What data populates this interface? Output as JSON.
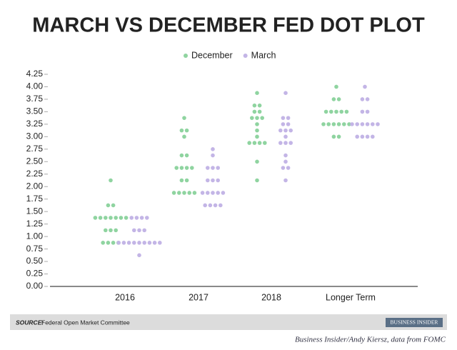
{
  "chart_data": {
    "type": "dot",
    "title": "MARCH VS DECEMBER FED DOT PLOT",
    "categories": [
      "2016",
      "2017",
      "2018",
      "Longer Term"
    ],
    "series": [
      {
        "name": "December",
        "color": "#8fd4a0",
        "values": [
          [
            2.125,
            1.625,
            1.625,
            1.375,
            1.375,
            1.375,
            1.375,
            1.375,
            1.375,
            1.375,
            1.125,
            1.125,
            1.125,
            0.875,
            0.875,
            0.875,
            0.875
          ],
          [
            3.375,
            3.125,
            3.125,
            3.0,
            2.625,
            2.625,
            2.375,
            2.375,
            2.375,
            2.375,
            2.125,
            2.125,
            1.875,
            1.875,
            1.875,
            1.875,
            1.875
          ],
          [
            3.875,
            3.625,
            3.625,
            3.5,
            3.5,
            3.375,
            3.375,
            3.375,
            3.25,
            3.125,
            3.0,
            2.875,
            2.875,
            2.875,
            2.875,
            2.5,
            2.125
          ],
          [
            4.0,
            3.75,
            3.75,
            3.5,
            3.5,
            3.5,
            3.5,
            3.5,
            3.25,
            3.25,
            3.25,
            3.25,
            3.25,
            3.25,
            3.0,
            3.0
          ]
        ]
      },
      {
        "name": "March",
        "color": "#c3b5e6",
        "values": [
          [
            1.375,
            1.375,
            1.375,
            1.375,
            1.125,
            1.125,
            1.125,
            0.875,
            0.875,
            0.875,
            0.875,
            0.875,
            0.875,
            0.875,
            0.875,
            0.875,
            0.625
          ],
          [
            2.75,
            2.625,
            2.375,
            2.375,
            2.375,
            2.125,
            2.125,
            2.125,
            1.875,
            1.875,
            1.875,
            1.875,
            1.875,
            1.625,
            1.625,
            1.625,
            1.625
          ],
          [
            3.875,
            3.375,
            3.375,
            3.25,
            3.25,
            3.125,
            3.125,
            3.125,
            3.0,
            2.875,
            2.875,
            2.875,
            2.625,
            2.5,
            2.375,
            2.375,
            2.125
          ],
          [
            4.0,
            3.75,
            3.75,
            3.5,
            3.5,
            3.25,
            3.25,
            3.25,
            3.25,
            3.25,
            3.25,
            3.0,
            3.0,
            3.0,
            3.0
          ]
        ]
      }
    ],
    "ylim": [
      0,
      4.25
    ],
    "yticks": [
      {
        "value": 0,
        "label": "0.00"
      },
      {
        "value": 0.25,
        "label": "0.25"
      },
      {
        "value": 0.5,
        "label": "0.50"
      },
      {
        "value": 0.75,
        "label": "0.75"
      },
      {
        "value": 1,
        "label": "1.00"
      },
      {
        "value": 1.25,
        "label": "1.25"
      },
      {
        "value": 1.5,
        "label": "1.50"
      },
      {
        "value": 1.75,
        "label": "1.75"
      },
      {
        "value": 2,
        "label": "2.00"
      },
      {
        "value": 2.25,
        "label": "2.25"
      },
      {
        "value": 2.5,
        "label": "2.50"
      },
      {
        "value": 2.75,
        "label": "2.75"
      },
      {
        "value": 3,
        "label": "3.00"
      },
      {
        "value": 3.25,
        "label": "3.25"
      },
      {
        "value": 3.5,
        "label": "3.50"
      },
      {
        "value": 3.75,
        "label": "3.75"
      },
      {
        "value": 4,
        "label": "4.00"
      },
      {
        "value": 4.25,
        "label": "4.25"
      }
    ],
    "grid": false,
    "legend": "top"
  },
  "footer": {
    "source_label": "SOURCE:",
    "source": "Federal Open Market Committee",
    "logo": "BUSINESS INSIDER"
  },
  "credit": "Business Insider/Andy Kiersz, data from FOMC"
}
